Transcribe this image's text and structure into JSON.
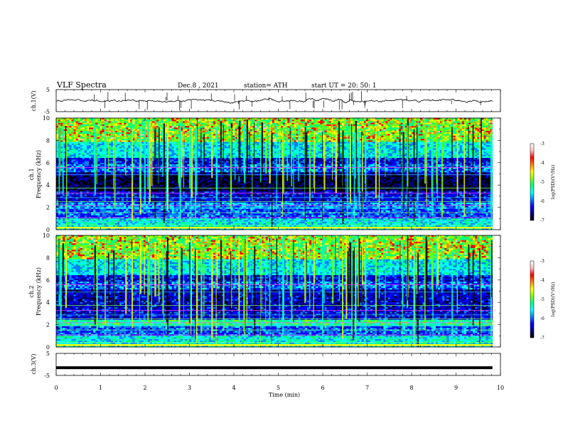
{
  "header": {
    "title": "VLF  Spectra",
    "date": "Dec.8  , 2021",
    "station": "station= ATH",
    "start": "start  UT  =   20: 50: 1"
  },
  "chart_data": [
    {
      "type": "line",
      "panel": "ch1-waveform",
      "ylabel": "ch.1(V)",
      "ylim": [
        -5,
        5
      ],
      "yticks": [
        "5",
        "-5"
      ],
      "xlim": [
        0,
        10
      ],
      "trace_color": "#000000"
    },
    {
      "type": "heatmap",
      "panel": "ch1-spectrogram",
      "ylabel": "ch.1\nFrequency  (kHz)",
      "ylabel_line1": "ch.1",
      "ylabel_line2": "Frequency  (kHz)",
      "ylim": [
        0,
        10
      ],
      "yticks": [
        "0",
        "2",
        "4",
        "6",
        "8",
        "10"
      ],
      "xlim": [
        0,
        10
      ],
      "data_xmax": 9.82,
      "colorbar": {
        "label": "log(PSD)(V²/Hz)",
        "range": [
          -7,
          -3
        ],
        "ticks": [
          "-3",
          "-4",
          "-5",
          "-6",
          "-7"
        ]
      }
    },
    {
      "type": "heatmap",
      "panel": "ch2-spectrogram",
      "ylabel": "ch.2\nFrequency  (kHz)",
      "ylabel_line1": "ch.2",
      "ylabel_line2": "Frequency  (kHz)",
      "ylim": [
        0,
        10
      ],
      "yticks": [
        "0",
        "2",
        "4",
        "6",
        "8",
        "10"
      ],
      "xlim": [
        0,
        10
      ],
      "data_xmax": 9.82,
      "colorbar": {
        "label": "log(PSD)(V²/Hz)",
        "range": [
          -7,
          -3
        ],
        "ticks": [
          "-3",
          "-4",
          "-5",
          "-6",
          "-7"
        ]
      }
    },
    {
      "type": "line",
      "panel": "ch3-waveform",
      "ylabel": "ch.3(V)",
      "ylim": [
        -5,
        5
      ],
      "yticks": [
        "5",
        "-5"
      ],
      "xlim": [
        0,
        10
      ],
      "trace_level": -1.5,
      "trace_color": "#000000"
    }
  ],
  "xaxis": {
    "label": "Time  (min)",
    "ticks": [
      "0",
      "1",
      "2",
      "3",
      "4",
      "5",
      "6",
      "7",
      "8",
      "9",
      "10"
    ]
  },
  "colormap": [
    "#000000",
    "#00007f",
    "#0000ff",
    "#0080ff",
    "#00ffff",
    "#00ff80",
    "#80ff00",
    "#ffff00",
    "#ff8000",
    "#ff0000",
    "#ffc0c0",
    "#ffffff"
  ]
}
